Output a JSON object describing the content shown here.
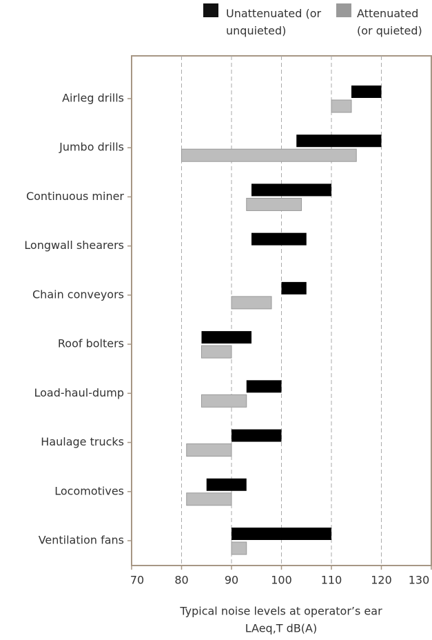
{
  "chart_data": {
    "type": "range-bar",
    "categories": [
      "Airleg drills",
      "Jumbo drills",
      "Continuous miner",
      "Longwall shearers",
      "Chain conveyors",
      "Roof bolters",
      "Load-haul-dump",
      "Haulage trucks",
      "Locomotives",
      "Ventilation fans"
    ],
    "series": [
      {
        "name": "Unattenuated (or unquieted)",
        "color": "#000000",
        "values": [
          [
            114,
            120
          ],
          [
            103,
            120
          ],
          [
            94,
            110
          ],
          [
            94,
            105
          ],
          [
            100,
            105
          ],
          [
            84,
            94
          ],
          [
            93,
            100
          ],
          [
            90,
            100
          ],
          [
            85,
            93
          ],
          [
            90,
            110
          ]
        ]
      },
      {
        "name": "Attenuated (or quieted)",
        "color": "#bdbdbd",
        "values": [
          [
            110,
            114
          ],
          [
            80,
            115
          ],
          [
            93,
            104
          ],
          null,
          [
            90,
            98
          ],
          [
            84,
            90
          ],
          [
            84,
            93
          ],
          [
            81,
            90
          ],
          [
            81,
            90
          ],
          [
            90,
            93
          ]
        ]
      }
    ],
    "xlim": [
      70,
      130
    ],
    "xticks": [
      70,
      80,
      90,
      100,
      110,
      120,
      130
    ],
    "grid": true,
    "x_label": [
      "Typical noise levels at operator’s ear",
      "LAeq,T dB(A)"
    ]
  }
}
